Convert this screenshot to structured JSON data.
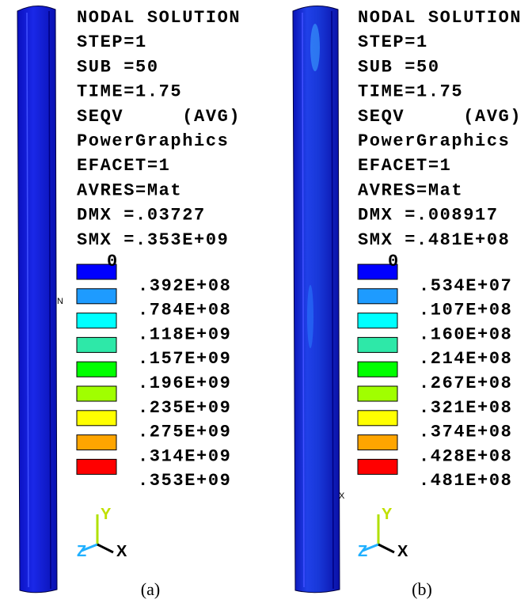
{
  "panels": [
    {
      "caption": "(a)",
      "node_marker": "N",
      "lines": [
        "NODAL SOLUTION",
        "STEP=1",
        "SUB =50",
        "TIME=1.75",
        "SEQV     (AVG)",
        "PowerGraphics",
        "EFACET=1",
        "AVRES=Mat",
        "DMX =.03727",
        "SMX =.353E+09"
      ],
      "legend": {
        "labels": [
          "0",
          ".392E+08",
          ".784E+08",
          ".118E+09",
          ".157E+09",
          ".196E+09",
          ".235E+09",
          ".275E+09",
          ".314E+09",
          ".353E+09"
        ],
        "colors": [
          "#0000ff",
          "#1e9bff",
          "#00ffff",
          "#2ee8a8",
          "#00ff00",
          "#a0ff00",
          "#ffff00",
          "#ffa500",
          "#ff0000"
        ]
      },
      "triad": {
        "y": "Y",
        "z": "Z",
        "x": "X"
      }
    },
    {
      "caption": "(b)",
      "node_marker": "X",
      "lines": [
        "NODAL SOLUTION",
        "STEP=1",
        "SUB =50",
        "TIME=1.75",
        "SEQV     (AVG)",
        "PowerGraphics",
        "EFACET=1",
        "AVRES=Mat",
        "DMX =.008917",
        "SMX =.481E+08"
      ],
      "legend": {
        "labels": [
          "0",
          ".534E+07",
          ".107E+08",
          ".160E+08",
          ".214E+08",
          ".267E+08",
          ".321E+08",
          ".374E+08",
          ".428E+08",
          ".481E+08"
        ],
        "colors": [
          "#0000ff",
          "#1e9bff",
          "#00ffff",
          "#2ee8a8",
          "#00ff00",
          "#a0ff00",
          "#ffff00",
          "#ffa500",
          "#ff0000"
        ]
      },
      "triad": {
        "y": "Y",
        "z": "Z",
        "x": "X"
      }
    }
  ]
}
